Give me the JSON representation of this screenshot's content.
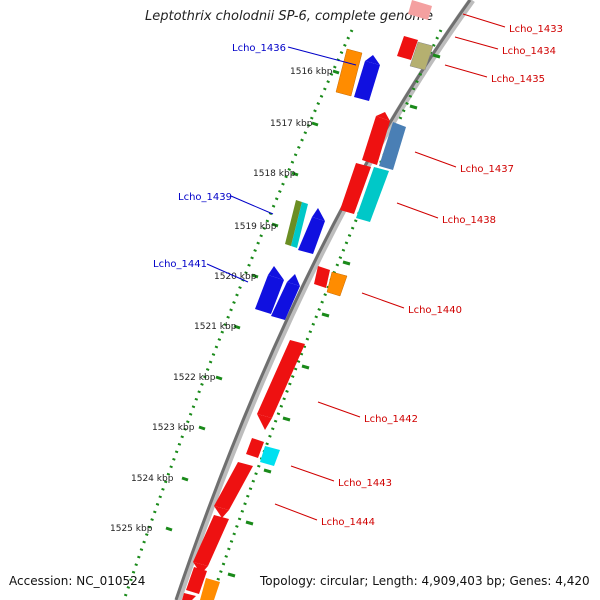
{
  "title": "Leptothrix cholodnii SP-6, complete genome",
  "footer": {
    "accession": "Accession: NC_010524",
    "summary": "Topology: circular; Length: 4,909,403 bp; Genes: 4,420"
  },
  "ticks": [
    "1516 kbp",
    "1517 kbp",
    "1518 kbp",
    "1519 kbp",
    "1520 kbp",
    "1521 kbp",
    "1522 kbp",
    "1523 kbp",
    "1524 kbp",
    "1525 kbp"
  ],
  "labels_left": [
    "Lcho_1436",
    "Lcho_1439",
    "Lcho_1441"
  ],
  "labels_right": [
    "Lcho_1433",
    "Lcho_1434",
    "Lcho_1435",
    "Lcho_1437",
    "Lcho_1438",
    "Lcho_1440",
    "Lcho_1442",
    "Lcho_1443",
    "Lcho_1444"
  ],
  "colors": {
    "backbone": "#8a8a8a",
    "dots": "#1a8a1a",
    "label_left": "#0000c8",
    "label_right": "#d00000",
    "red": "#ee1111",
    "orange": "#ff8c00",
    "blue": "#1010e0",
    "steel": "#4a7fb5",
    "cyan": "#00c8c8",
    "olive": "#6b8e23",
    "khaki": "#b5b070",
    "pink": "#f4a0a0"
  }
}
